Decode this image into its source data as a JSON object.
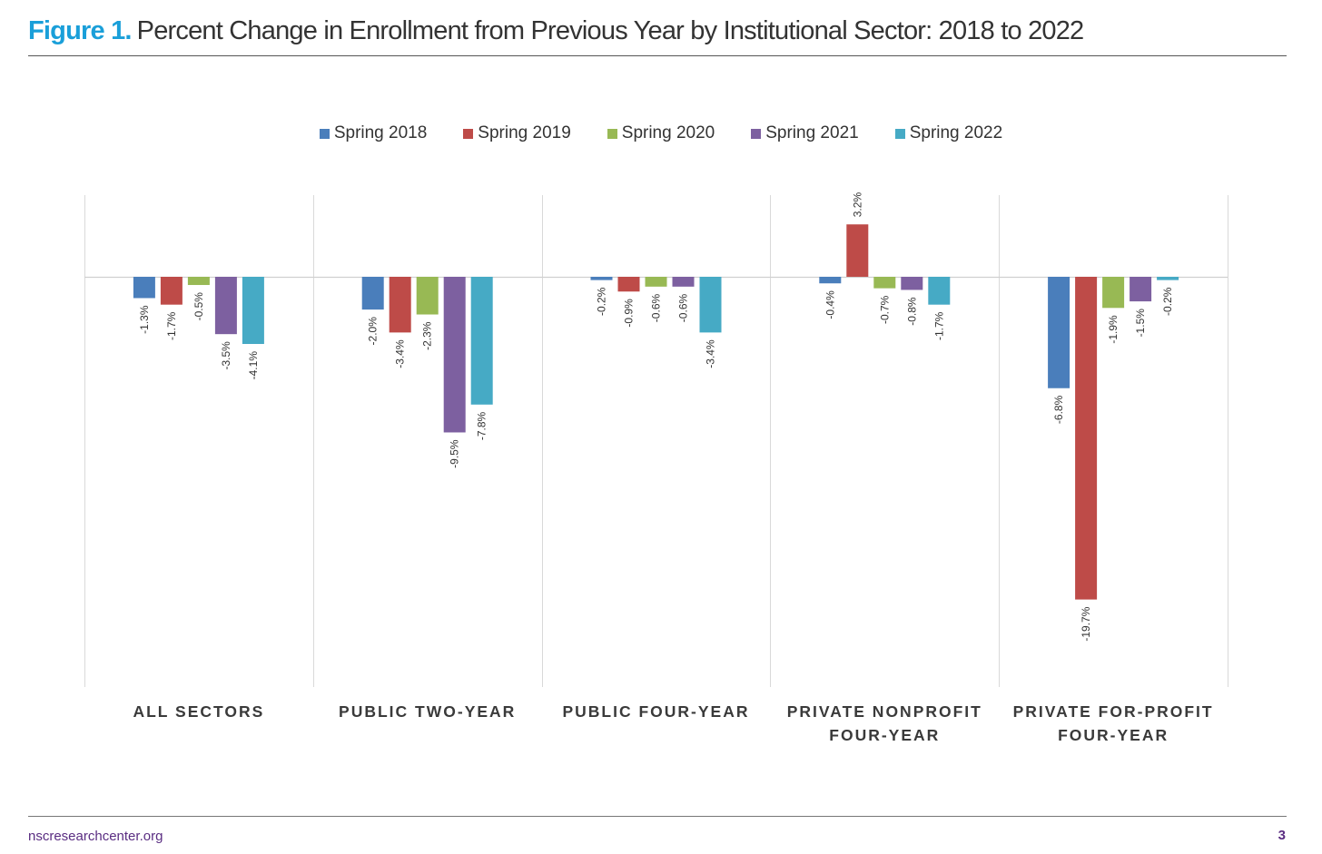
{
  "header": {
    "figure_number": "Figure 1.",
    "title": "Percent Change in Enrollment from Previous Year by Institutional Sector: 2018 to 2022"
  },
  "footer": {
    "site": "nscresearchcenter.org",
    "page_number": "3"
  },
  "chart_data": {
    "type": "bar",
    "title": "Percent Change in Enrollment from Previous Year by Institutional Sector: 2018 to 2022",
    "xlabel": "",
    "ylabel": "",
    "ylim": [
      -25,
      5
    ],
    "legend_position": "top",
    "grid": false,
    "categories": [
      [
        "ALL SECTORS"
      ],
      [
        "PUBLIC TWO-YEAR"
      ],
      [
        "PUBLIC FOUR-YEAR"
      ],
      [
        "PRIVATE NONPROFIT",
        "FOUR-YEAR"
      ],
      [
        "PRIVATE FOR-PROFIT",
        "FOUR-YEAR"
      ]
    ],
    "series": [
      {
        "name": "Spring 2018",
        "color": "#4a7ebb",
        "values": [
          -1.3,
          -2.0,
          -0.2,
          -0.4,
          -6.8
        ],
        "labels": [
          "-1.3%",
          "-2.0%",
          "-0.2%",
          "-0.4%",
          "-6.8%"
        ]
      },
      {
        "name": "Spring 2019",
        "color": "#be4b48",
        "values": [
          -1.7,
          -3.4,
          -0.9,
          3.2,
          -19.7
        ],
        "labels": [
          "-1.7%",
          "-3.4%",
          "-0.9%",
          "3.2%",
          "-19.7%"
        ]
      },
      {
        "name": "Spring 2020",
        "color": "#98b954",
        "values": [
          -0.5,
          -2.3,
          -0.6,
          -0.7,
          -1.9
        ],
        "labels": [
          "-0.5%",
          "-2.3%",
          "-0.6%",
          "-0.7%",
          "-1.9%"
        ]
      },
      {
        "name": "Spring 2021",
        "color": "#7d60a0",
        "values": [
          -3.5,
          -9.5,
          -0.6,
          -0.8,
          -1.5
        ],
        "labels": [
          "-3.5%",
          "-9.5%",
          "-0.6%",
          "-0.8%",
          "-1.5%"
        ]
      },
      {
        "name": "Spring 2022",
        "color": "#46aac5",
        "values": [
          -4.1,
          -7.8,
          -3.4,
          -1.7,
          -0.2
        ],
        "labels": [
          "-4.1%",
          "-7.8%",
          "-3.4%",
          "-1.7%",
          "-0.2%"
        ]
      }
    ]
  }
}
